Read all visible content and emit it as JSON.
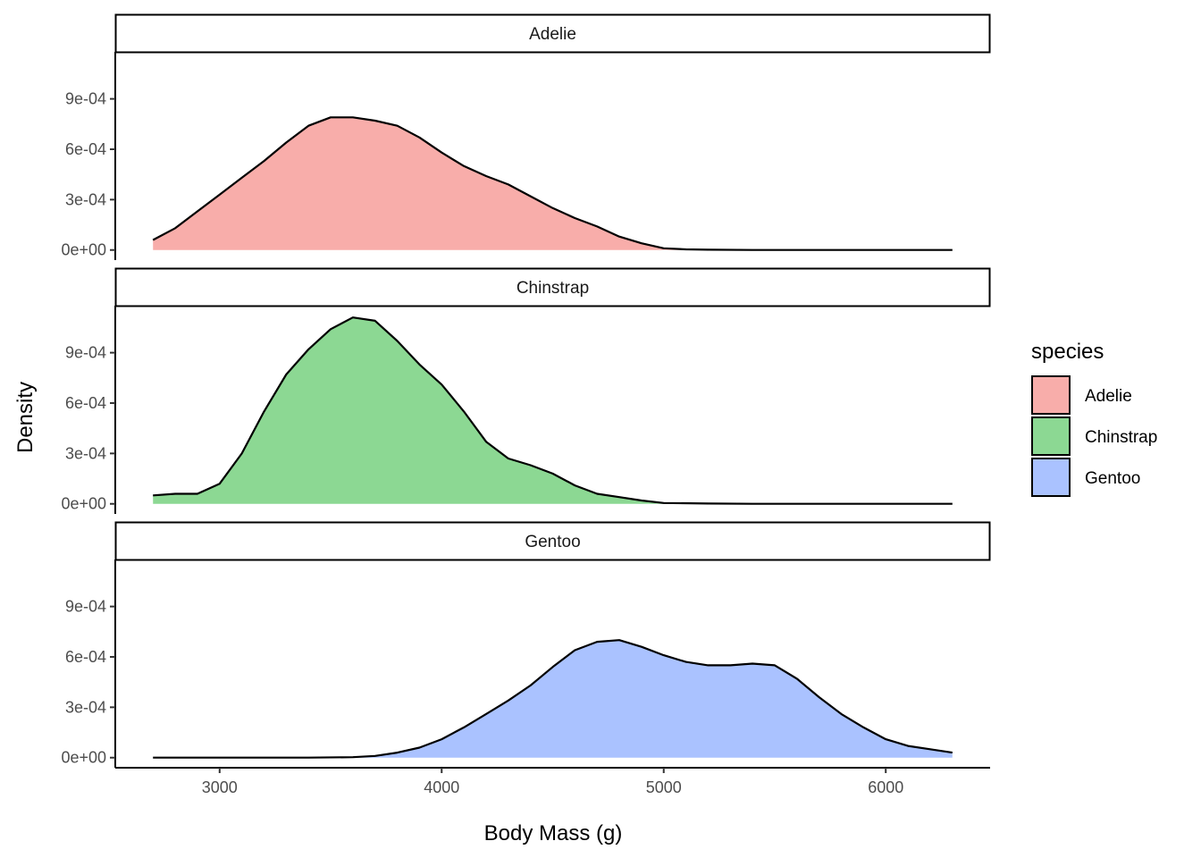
{
  "chart_data": {
    "type": "area",
    "subtype": "faceted-density",
    "xlabel": "Body Mass (g)",
    "ylabel": "Density",
    "xlim": [
      2530,
      6470
    ],
    "ylim": [
      -6e-05,
      0.00118
    ],
    "x_ticks": [
      3000,
      4000,
      5000,
      6000
    ],
    "x_tick_labels": [
      "3000",
      "4000",
      "5000",
      "6000"
    ],
    "y_ticks": [
      0,
      0.0003,
      0.0006,
      0.0009
    ],
    "y_tick_labels": [
      "0e+00",
      "3e-04",
      "6e-04",
      "9e-04"
    ],
    "legend": {
      "title": "species",
      "position": "right",
      "entries": [
        {
          "label": "Adelie",
          "color": "#F8ADAA"
        },
        {
          "label": "Chinstrap",
          "color": "#8CD893"
        },
        {
          "label": "Gentoo",
          "color": "#AAC2FF"
        }
      ]
    },
    "series": [
      {
        "name": "Adelie",
        "fill": "#F8ADAA",
        "x": [
          2700,
          2800,
          2900,
          3000,
          3100,
          3200,
          3300,
          3400,
          3500,
          3600,
          3700,
          3800,
          3900,
          4000,
          4100,
          4200,
          4300,
          4400,
          4500,
          4600,
          4700,
          4800,
          4900,
          5000,
          5100,
          5200,
          5400,
          5600,
          5800,
          6000,
          6300
        ],
        "y": [
          6e-05,
          0.00013,
          0.00023,
          0.00033,
          0.00043,
          0.00053,
          0.00064,
          0.00074,
          0.00079,
          0.00079,
          0.00077,
          0.00074,
          0.00067,
          0.00058,
          0.0005,
          0.00044,
          0.00039,
          0.00032,
          0.00025,
          0.00019,
          0.00014,
          8e-05,
          4e-05,
          1e-05,
          4e-06,
          2e-06,
          0,
          0,
          0,
          0,
          0
        ]
      },
      {
        "name": "Chinstrap",
        "fill": "#8CD893",
        "x": [
          2700,
          2800,
          2900,
          3000,
          3100,
          3200,
          3300,
          3400,
          3500,
          3600,
          3700,
          3800,
          3900,
          4000,
          4100,
          4200,
          4300,
          4400,
          4500,
          4600,
          4700,
          4800,
          4900,
          5000,
          5200,
          5400,
          5600,
          5800,
          6000,
          6300
        ],
        "y": [
          5e-05,
          6e-05,
          6e-05,
          0.00012,
          0.0003,
          0.00055,
          0.00077,
          0.00092,
          0.00104,
          0.00111,
          0.00109,
          0.00097,
          0.00083,
          0.00071,
          0.00055,
          0.00037,
          0.00027,
          0.00023,
          0.00018,
          0.00011,
          6e-05,
          4e-05,
          2e-05,
          5e-06,
          2e-06,
          0,
          0,
          0,
          0,
          0
        ]
      },
      {
        "name": "Gentoo",
        "fill": "#AAC2FF",
        "x": [
          2700,
          3000,
          3200,
          3400,
          3600,
          3700,
          3800,
          3900,
          4000,
          4100,
          4200,
          4300,
          4400,
          4500,
          4600,
          4700,
          4800,
          4900,
          5000,
          5100,
          5200,
          5300,
          5400,
          5500,
          5600,
          5700,
          5800,
          5900,
          6000,
          6100,
          6200,
          6300
        ],
        "y": [
          0,
          0,
          0,
          0,
          3e-06,
          1e-05,
          3e-05,
          6e-05,
          0.00011,
          0.00018,
          0.00026,
          0.00034,
          0.00043,
          0.00054,
          0.00064,
          0.00069,
          0.0007,
          0.00066,
          0.00061,
          0.00057,
          0.00055,
          0.00055,
          0.00056,
          0.00055,
          0.00047,
          0.00036,
          0.00026,
          0.00018,
          0.00011,
          7e-05,
          5e-05,
          3e-05
        ]
      }
    ]
  }
}
